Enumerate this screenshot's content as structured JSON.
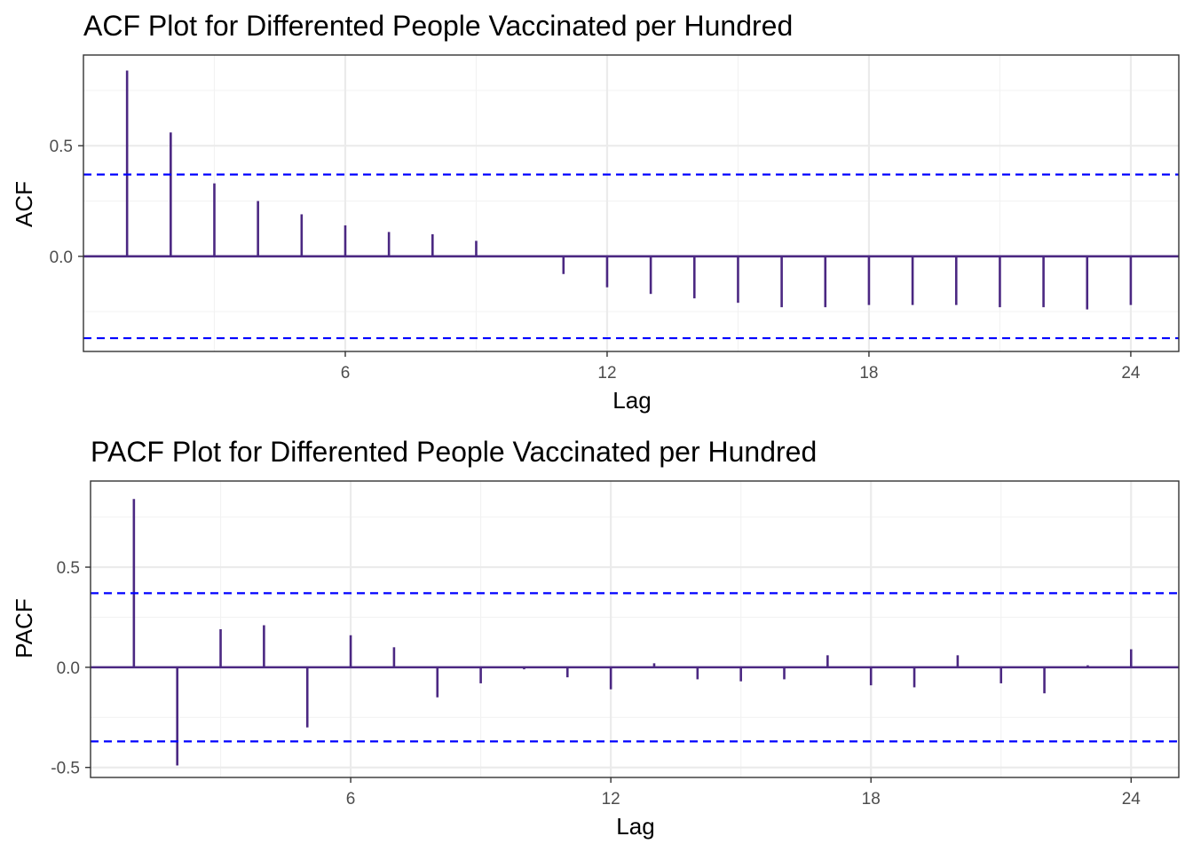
{
  "chart_data": [
    {
      "type": "bar",
      "title": "ACF Plot for Differented People Vaccinated per Hundred",
      "xlabel": "Lag",
      "ylabel": "ACF",
      "xlim": [
        0,
        25.1
      ],
      "ylim": [
        -0.43,
        0.91
      ],
      "x_ticks": [
        6,
        12,
        18,
        24
      ],
      "y_ticks": [
        0.0,
        0.5
      ],
      "y_tick_labels": [
        "0.0",
        "0.5"
      ],
      "grid": true,
      "confidence_bound": 0.37,
      "lags": [
        1,
        2,
        3,
        4,
        5,
        6,
        7,
        8,
        9,
        10,
        11,
        12,
        13,
        14,
        15,
        16,
        17,
        18,
        19,
        20,
        21,
        22,
        23,
        24
      ],
      "values": [
        0.84,
        0.56,
        0.33,
        0.25,
        0.19,
        0.14,
        0.11,
        0.1,
        0.07,
        0.0,
        -0.08,
        -0.14,
        -0.17,
        -0.19,
        -0.21,
        -0.23,
        -0.23,
        -0.22,
        -0.22,
        -0.22,
        -0.23,
        -0.23,
        -0.24,
        -0.22
      ],
      "colors": {
        "bar": "#4b2882",
        "bound": "#0000ff",
        "zero": "#4b2882"
      }
    },
    {
      "type": "bar",
      "title": "PACF Plot for Differented People Vaccinated per Hundred",
      "xlabel": "Lag",
      "ylabel": "PACF",
      "xlim": [
        0,
        25.1
      ],
      "ylim": [
        -0.55,
        0.93
      ],
      "x_ticks": [
        6,
        12,
        18,
        24
      ],
      "y_ticks": [
        -0.5,
        0.0,
        0.5
      ],
      "y_tick_labels": [
        "-0.5",
        "0.0",
        "0.5"
      ],
      "grid": true,
      "confidence_bound": 0.37,
      "lags": [
        1,
        2,
        3,
        4,
        5,
        6,
        7,
        8,
        9,
        10,
        11,
        12,
        13,
        14,
        15,
        16,
        17,
        18,
        19,
        20,
        21,
        22,
        23,
        24
      ],
      "values": [
        0.84,
        -0.49,
        0.19,
        0.21,
        -0.3,
        0.16,
        0.1,
        -0.15,
        -0.08,
        -0.01,
        -0.05,
        -0.11,
        0.02,
        -0.06,
        -0.07,
        -0.06,
        0.06,
        -0.09,
        -0.1,
        0.06,
        -0.08,
        -0.13,
        0.01,
        0.09
      ],
      "colors": {
        "bar": "#4b2882",
        "bound": "#0000ff",
        "zero": "#4b2882"
      }
    }
  ]
}
